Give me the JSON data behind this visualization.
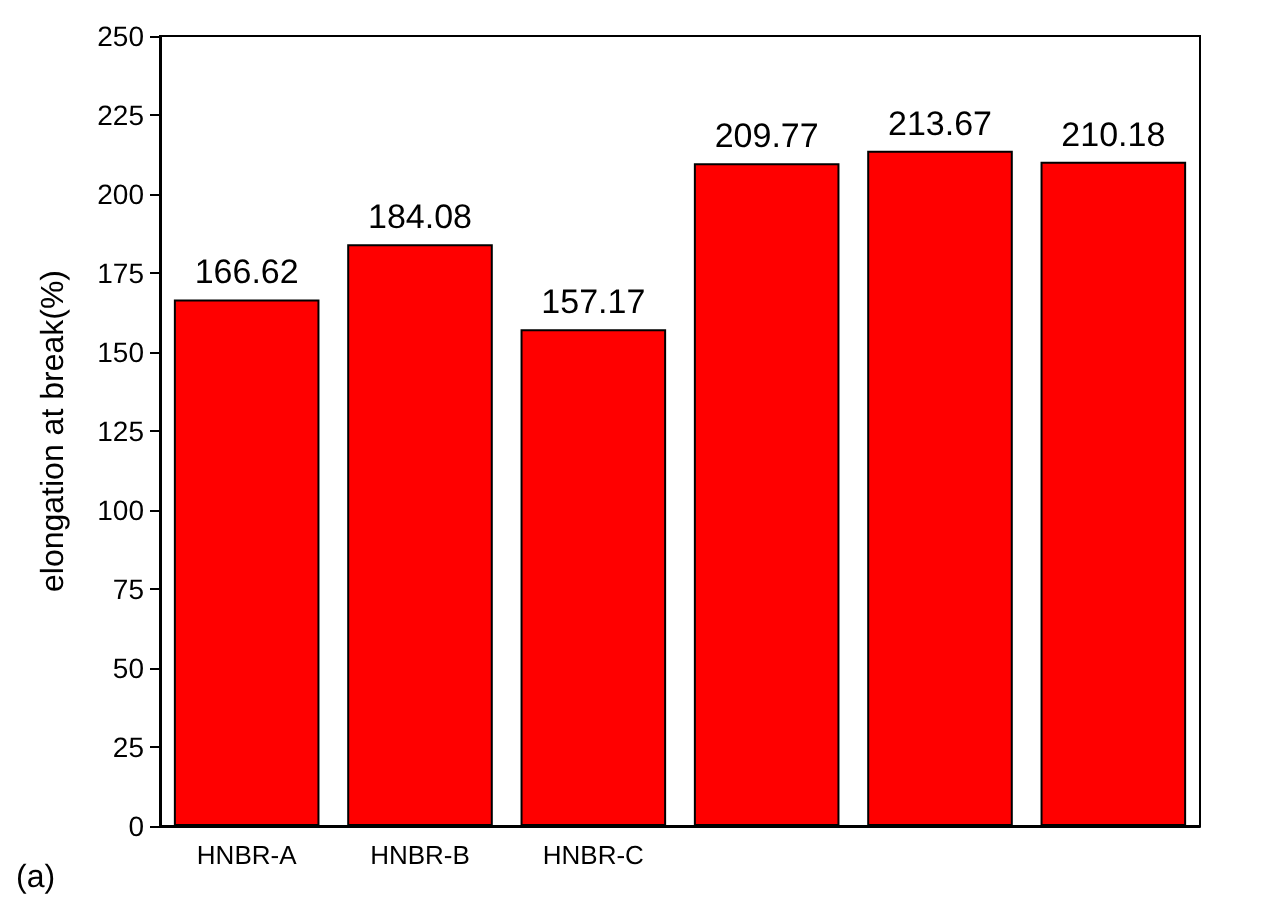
{
  "chart_data": {
    "type": "bar",
    "ylabel": "elongation at break(%)",
    "categories": [
      "HNBR-A",
      "HNBR-B",
      "HNBR-C",
      null,
      null,
      null
    ],
    "values": [
      166.62,
      184.08,
      157.17,
      209.77,
      213.67,
      210.18
    ],
    "color": "#ff0000",
    "ylim": [
      0,
      250
    ],
    "yticks": [
      0,
      25,
      50,
      75,
      100,
      125,
      150,
      175,
      200,
      225,
      250
    ],
    "data_labels": true,
    "grid": false,
    "annotations": [
      "(a)"
    ]
  }
}
